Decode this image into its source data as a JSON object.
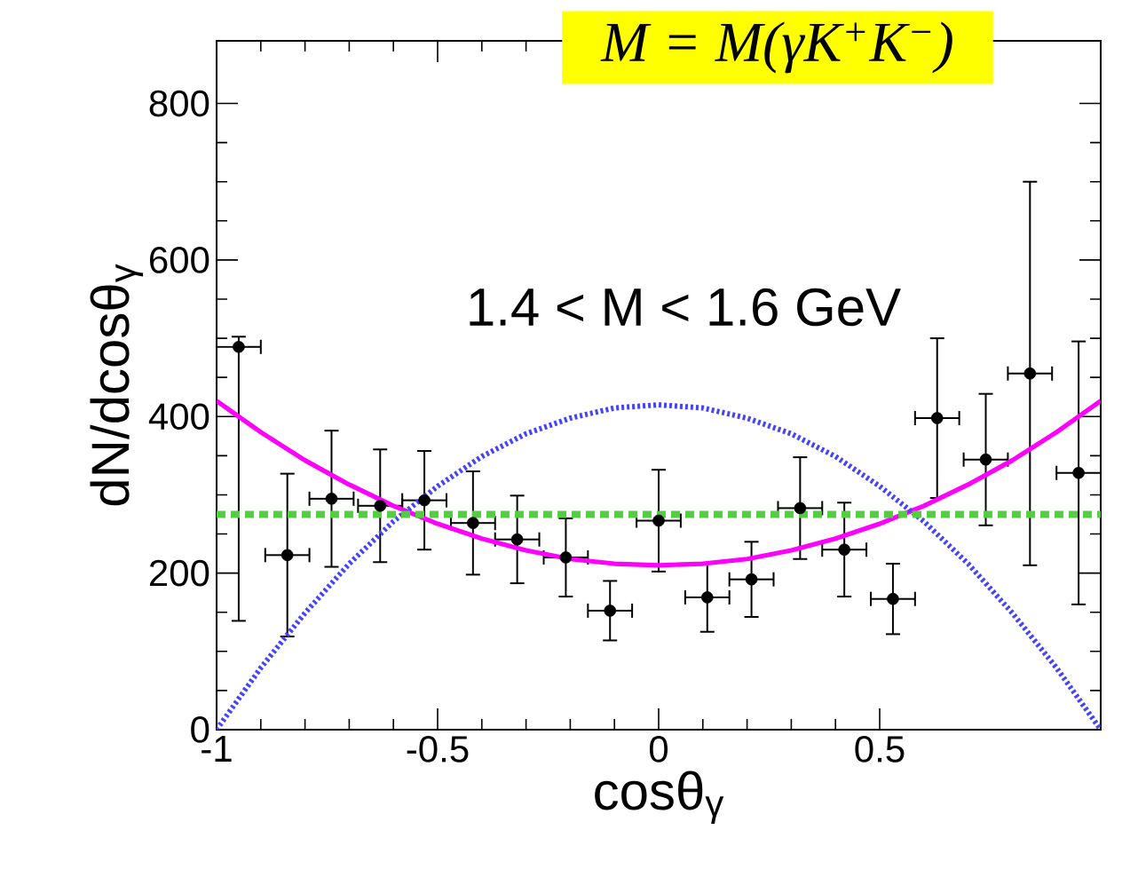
{
  "chart_data": {
    "type": "scatter",
    "title": "M = M(γK$^{+}$K$^{−}$)",
    "xlabel": "cosθ$_{γ}$",
    "ylabel": "dN/dcosθ$_{γ}$",
    "annotations": [
      "1.4 < M < 1.6 GeV"
    ],
    "xlim": [
      -1,
      1
    ],
    "ylim": [
      0,
      880
    ],
    "xticks": [
      -1,
      -0.5,
      0,
      0.5
    ],
    "yticks": [
      0,
      200,
      400,
      600,
      800
    ],
    "series": [
      {
        "color": "#000000",
        "marker": "circle",
        "x": [
          -0.95,
          -0.84,
          -0.74,
          -0.63,
          -0.53,
          -0.42,
          -0.32,
          -0.21,
          -0.11,
          0,
          0.11,
          0.21,
          0.32,
          0.42,
          0.53,
          0.63,
          0.74,
          0.84,
          0.95
        ],
        "values": [
          489,
          223,
          295,
          286,
          293,
          264,
          243,
          220,
          152,
          267,
          169,
          192,
          283,
          230,
          167,
          398,
          345,
          455,
          328
        ],
        "errors": [
          [
            139,
            502
          ],
          104,
          87,
          72,
          63,
          66,
          56,
          50,
          38,
          65,
          44,
          48,
          65,
          60,
          45,
          102,
          84,
          245,
          168
        ],
        "xerrors": [
          0.05,
          0.05,
          0.05,
          0.05,
          0.05,
          0.05,
          0.05,
          0.05,
          0.05,
          0.05,
          0.05,
          0.05,
          0.05,
          0.05,
          0.05,
          0.05,
          0.05,
          0.05,
          0.05
        ]
      },
      {
        "type": "line",
        "color": "#ff00ff",
        "marker": "none",
        "line_style": "solid",
        "x": [
          -1,
          -0.9,
          -0.8,
          -0.7,
          -0.6,
          -0.5,
          -0.4,
          -0.3,
          -0.2,
          -0.1,
          0,
          0.1,
          0.2,
          0.3,
          0.4,
          0.5,
          0.6,
          0.7,
          0.8,
          0.9,
          1
        ],
        "values": [
          420,
          380,
          344,
          313,
          286,
          263,
          244,
          229,
          218,
          212,
          210,
          212,
          218,
          229,
          244,
          263,
          286,
          313,
          344,
          380,
          420
        ]
      },
      {
        "type": "line",
        "color": "#4444ff",
        "marker": "none",
        "line_style": "dotted",
        "x": [
          -1,
          -0.9,
          -0.8,
          -0.7,
          -0.6,
          -0.5,
          -0.4,
          -0.3,
          -0.2,
          -0.1,
          0,
          0.1,
          0.2,
          0.3,
          0.4,
          0.5,
          0.6,
          0.7,
          0.8,
          0.9,
          1
        ],
        "values": [
          0,
          79,
          149,
          212,
          266,
          311,
          349,
          378,
          398,
          411,
          415,
          411,
          398,
          378,
          349,
          311,
          266,
          212,
          149,
          79,
          0
        ]
      },
      {
        "type": "line",
        "color": "#55cc44",
        "marker": "none",
        "line_style": "dashed",
        "x": [
          -1,
          1
        ],
        "values": [
          275,
          275
        ]
      }
    ]
  }
}
